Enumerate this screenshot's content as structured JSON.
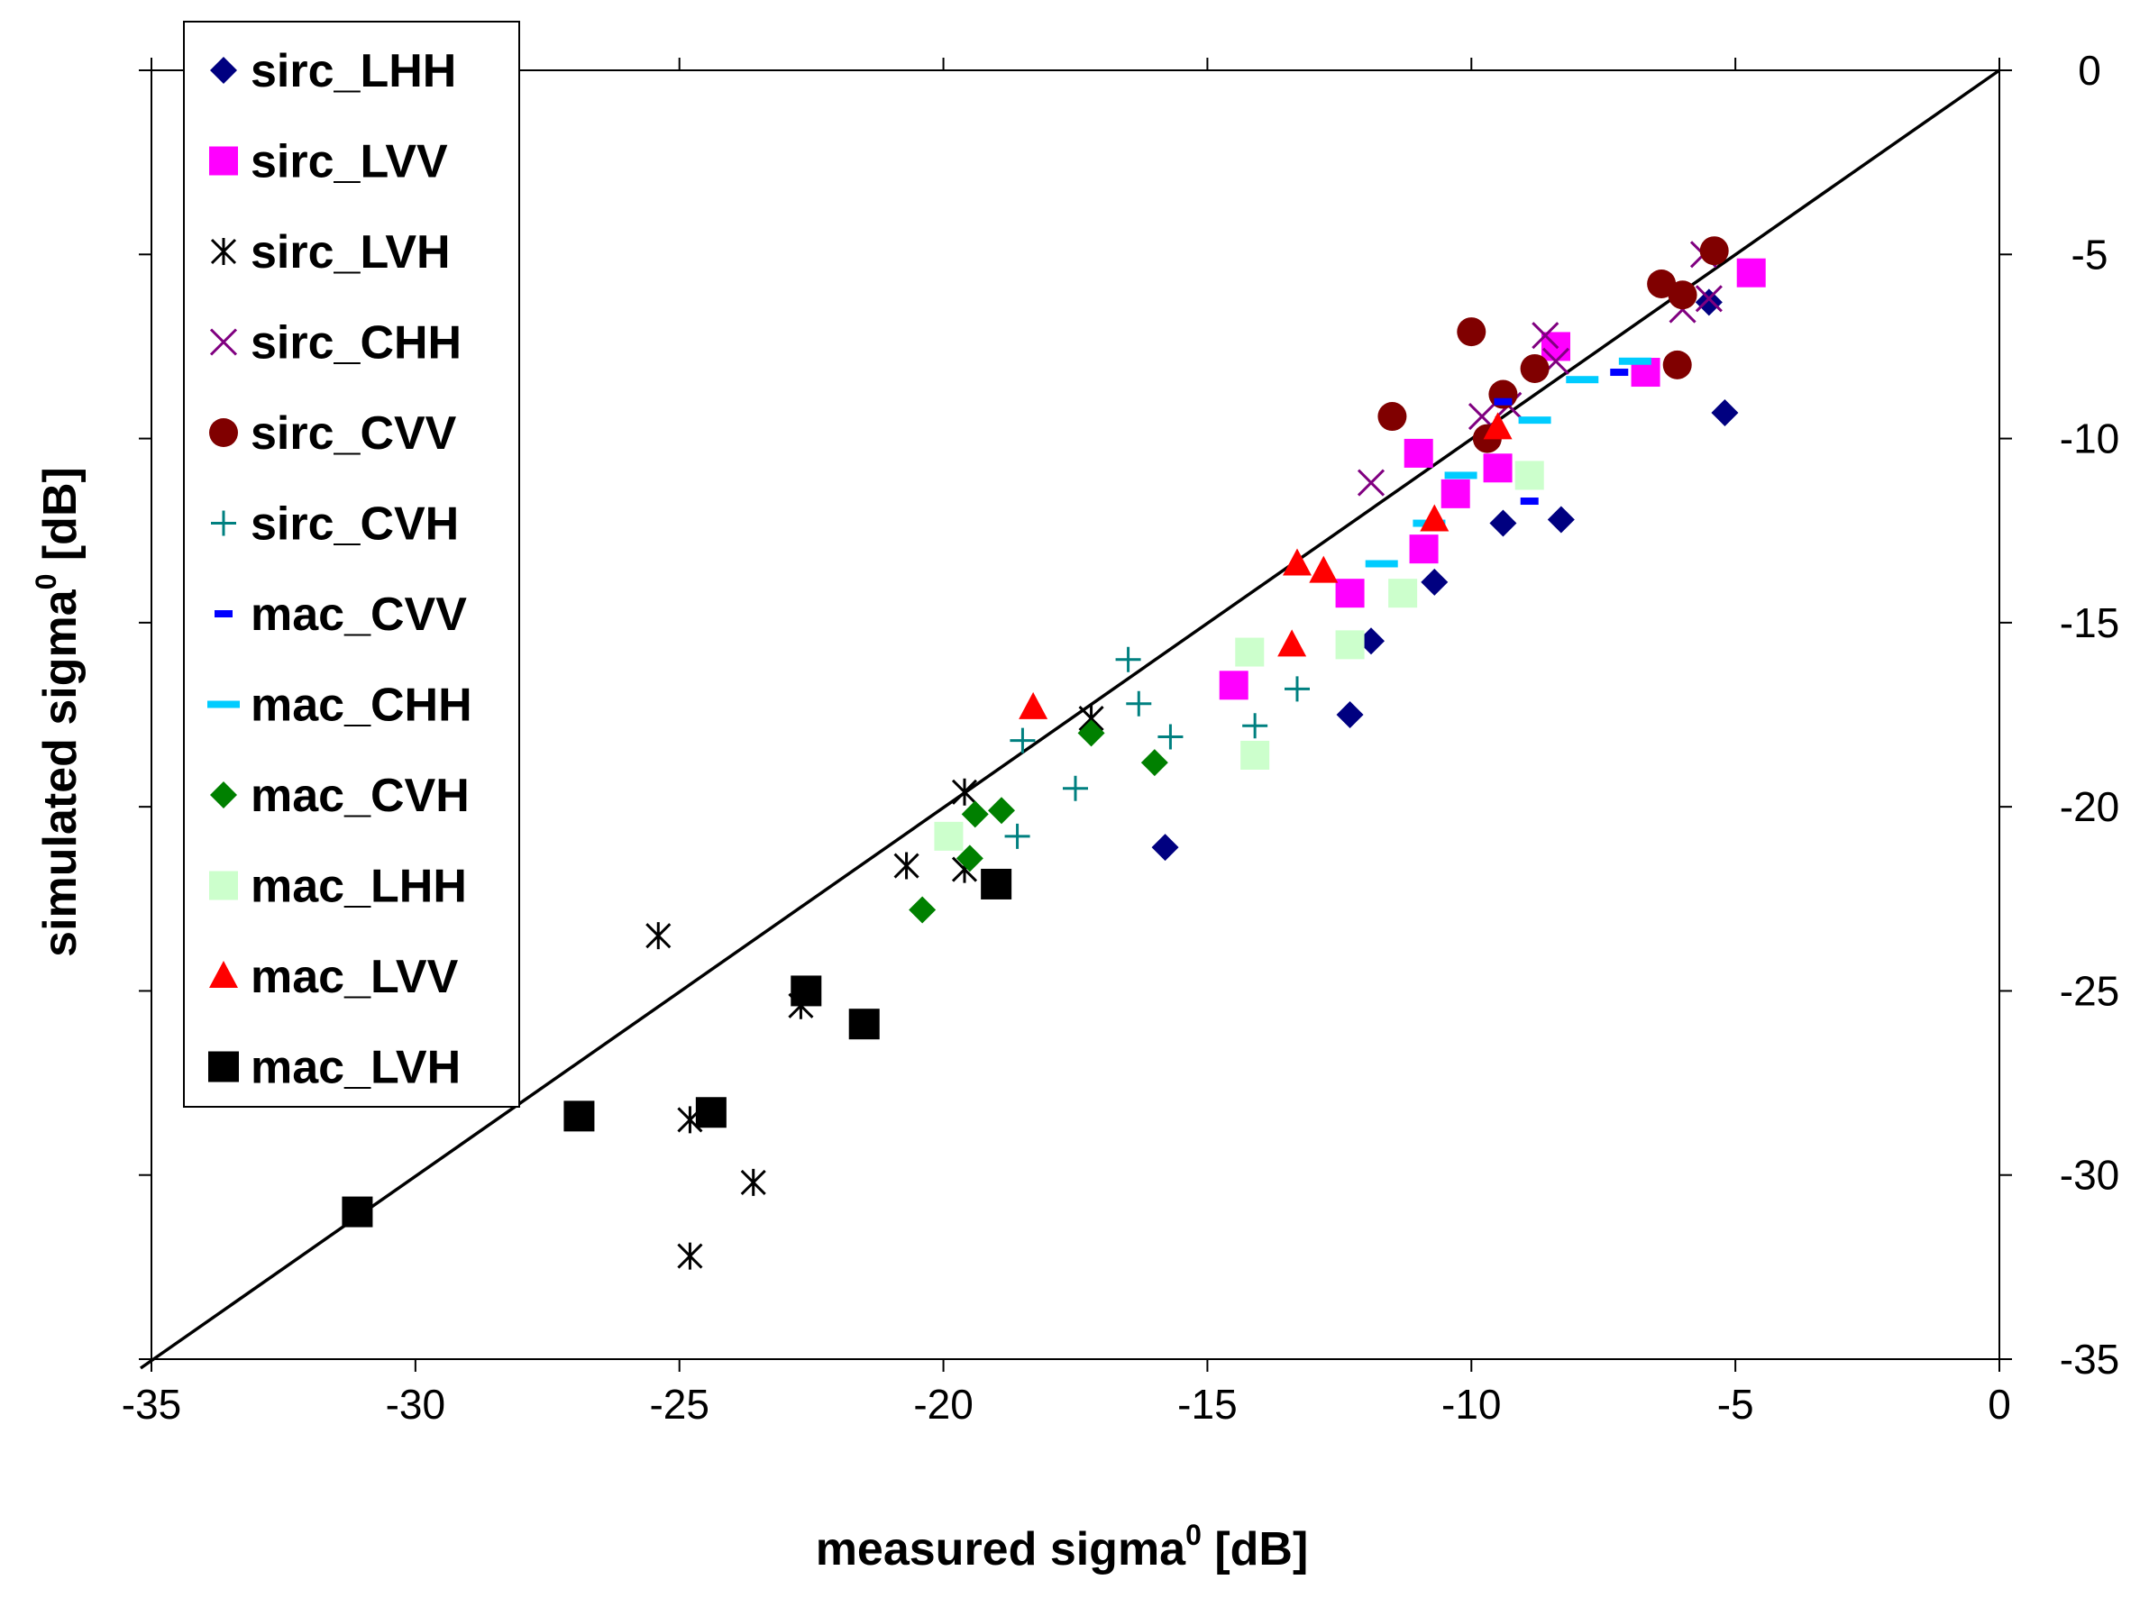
{
  "chart_data": {
    "type": "scatter",
    "title": "",
    "xlabel": "measured sigma",
    "ylabel": "simulated  sigma",
    "label_superscript": "0",
    "label_unit": "[dB]",
    "xlim": [
      -35,
      0
    ],
    "ylim": [
      -35,
      0
    ],
    "x_ticks": [
      "-35",
      "-30",
      "-25",
      "-20",
      "-15",
      "-10",
      "-5",
      "0"
    ],
    "y_ticks": [
      "0",
      "-5",
      "-10",
      "-15",
      "-20",
      "-25",
      "-30",
      "-35"
    ],
    "reference_line": "y = x",
    "grid": false,
    "legend_position": "top-left",
    "series": [
      {
        "name": "sirc_LHH",
        "marker": "diamond",
        "color": "#000080",
        "points": [
          [
            -5.2,
            -9.3
          ],
          [
            -5.5,
            -6.3
          ],
          [
            -8.3,
            -12.2
          ],
          [
            -9.4,
            -12.3
          ],
          [
            -10.7,
            -13.9
          ],
          [
            -11.9,
            -15.5
          ],
          [
            -12.3,
            -17.5
          ],
          [
            -15.8,
            -21.1
          ]
        ]
      },
      {
        "name": "sirc_LVV",
        "marker": "square",
        "color": "#ff00ff",
        "points": [
          [
            -4.7,
            -5.5
          ],
          [
            -6.7,
            -8.2
          ],
          [
            -8.4,
            -7.5
          ],
          [
            -9.5,
            -10.8
          ],
          [
            -10.3,
            -11.5
          ],
          [
            -11.0,
            -10.4
          ],
          [
            -10.9,
            -13.0
          ],
          [
            -12.3,
            -14.2
          ],
          [
            -14.5,
            -16.7
          ]
        ]
      },
      {
        "name": "sirc_LVH",
        "marker": "asterisk",
        "color": "#000000",
        "points": [
          [
            -17.2,
            -17.6
          ],
          [
            -19.6,
            -19.6
          ],
          [
            -19.6,
            -21.7
          ],
          [
            -20.7,
            -21.6
          ],
          [
            -25.4,
            -23.5
          ],
          [
            -22.7,
            -25.4
          ],
          [
            -24.8,
            -28.5
          ],
          [
            -23.6,
            -30.2
          ],
          [
            -24.8,
            -32.2
          ]
        ]
      },
      {
        "name": "sirc_CHH",
        "marker": "x",
        "color": "#800080",
        "points": [
          [
            -5.6,
            -5.0
          ],
          [
            -5.5,
            -6.2
          ],
          [
            -6.0,
            -6.5
          ],
          [
            -8.6,
            -7.2
          ],
          [
            -8.4,
            -7.9
          ],
          [
            -9.3,
            -9.1
          ],
          [
            -9.8,
            -9.4
          ],
          [
            -11.9,
            -11.2
          ]
        ]
      },
      {
        "name": "sirc_CVV",
        "marker": "circle",
        "color": "#800000",
        "points": [
          [
            -5.4,
            -4.9
          ],
          [
            -6.4,
            -5.8
          ],
          [
            -6.0,
            -6.1
          ],
          [
            -6.1,
            -8.0
          ],
          [
            -10.0,
            -7.1
          ],
          [
            -8.8,
            -8.1
          ],
          [
            -9.4,
            -8.8
          ],
          [
            -9.7,
            -10.0
          ],
          [
            -11.5,
            -9.4
          ]
        ]
      },
      {
        "name": "sirc_CVH",
        "marker": "plus",
        "color": "#008080",
        "points": [
          [
            -16.5,
            -16.0
          ],
          [
            -16.3,
            -17.2
          ],
          [
            -15.7,
            -18.1
          ],
          [
            -18.5,
            -18.2
          ],
          [
            -17.5,
            -19.5
          ],
          [
            -18.6,
            -20.8
          ],
          [
            -14.1,
            -17.8
          ],
          [
            -13.3,
            -16.8
          ]
        ]
      },
      {
        "name": "mac_CVV",
        "marker": "dash",
        "color": "#0000ff",
        "points": [
          [
            -9.4,
            -9.0
          ],
          [
            -7.2,
            -8.2
          ],
          [
            -8.9,
            -11.7
          ]
        ]
      },
      {
        "name": "mac_CHH",
        "marker": "dash-wide",
        "color": "#00ccff",
        "points": [
          [
            -6.9,
            -7.9
          ],
          [
            -7.9,
            -8.4
          ],
          [
            -8.8,
            -9.5
          ],
          [
            -10.2,
            -11.0
          ],
          [
            -10.8,
            -12.3
          ],
          [
            -11.7,
            -13.4
          ]
        ]
      },
      {
        "name": "mac_CVH",
        "marker": "diamond",
        "color": "#008000",
        "points": [
          [
            -17.2,
            -18.0
          ],
          [
            -16.0,
            -18.8
          ],
          [
            -18.9,
            -20.1
          ],
          [
            -19.4,
            -20.2
          ],
          [
            -19.5,
            -21.4
          ],
          [
            -20.4,
            -22.8
          ]
        ]
      },
      {
        "name": "mac_LHH",
        "marker": "square",
        "color": "#ccffcc",
        "points": [
          [
            -8.9,
            -11.0
          ],
          [
            -11.3,
            -14.2
          ],
          [
            -12.3,
            -15.6
          ],
          [
            -14.2,
            -15.8
          ],
          [
            -14.1,
            -18.6
          ],
          [
            -19.9,
            -20.8
          ]
        ]
      },
      {
        "name": "mac_LVV",
        "marker": "triangle",
        "color": "#ff0000",
        "points": [
          [
            -9.5,
            -9.7
          ],
          [
            -10.7,
            -12.2
          ],
          [
            -12.8,
            -13.6
          ],
          [
            -13.3,
            -13.4
          ],
          [
            -13.4,
            -15.6
          ],
          [
            -18.3,
            -17.3
          ]
        ]
      },
      {
        "name": "mac_LVH",
        "marker": "square",
        "color": "#000000",
        "points": [
          [
            -31.1,
            -31.0
          ],
          [
            -26.9,
            -28.4
          ],
          [
            -24.4,
            -28.3
          ],
          [
            -22.6,
            -25.0
          ],
          [
            -21.5,
            -25.9
          ],
          [
            -19.0,
            -22.1
          ]
        ]
      }
    ]
  }
}
